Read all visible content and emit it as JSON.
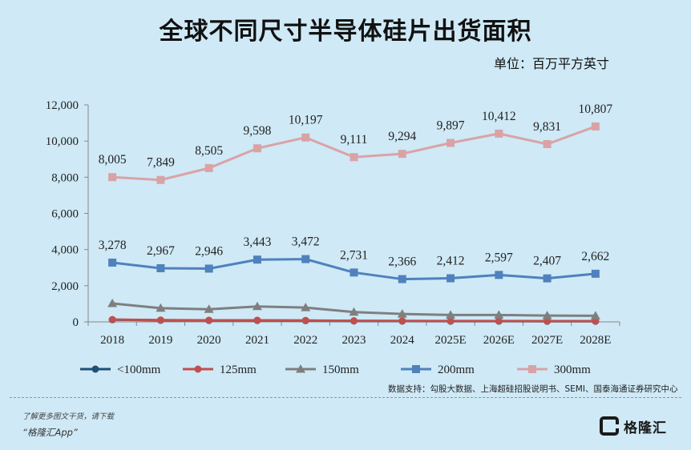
{
  "title": "全球不同尺寸半导体硅片出货面积",
  "unit": "单位：百万平方英寸",
  "source": "数据支持：勾股大数据、上海超硅招股说明书、SEMI、国泰海通证券研究中心",
  "footer": {
    "line": "了解更多图文干货，请下载",
    "app": "“格隆汇App”",
    "brand": "格隆汇"
  },
  "chart_data": {
    "type": "line",
    "categories": [
      "2018",
      "2019",
      "2020",
      "2021",
      "2022",
      "2023",
      "2024",
      "2025E",
      "2026E",
      "2027E",
      "2028E"
    ],
    "ylim": [
      0,
      12000
    ],
    "yticks": [
      "0",
      "2,000",
      "4,000",
      "6,000",
      "8,000",
      "10,000",
      "12,000"
    ],
    "grid": false,
    "legend_position": "bottom",
    "series": [
      {
        "name": "<100mm",
        "color": "#1f4e79",
        "marker": "circle",
        "values": [
          120,
          90,
          80,
          80,
          70,
          50,
          45,
          40,
          40,
          35,
          35
        ],
        "labels": null
      },
      {
        "name": "125mm",
        "color": "#c0504d",
        "marker": "circle",
        "values": [
          130,
          100,
          90,
          90,
          80,
          60,
          55,
          50,
          50,
          45,
          45
        ],
        "labels": null
      },
      {
        "name": "150mm",
        "color": "#7f7f7f",
        "marker": "triangle",
        "values": [
          1020,
          760,
          700,
          850,
          790,
          540,
          440,
          380,
          380,
          350,
          340
        ],
        "labels": null
      },
      {
        "name": "200mm",
        "color": "#4f81bd",
        "marker": "square",
        "values": [
          3278,
          2967,
          2946,
          3443,
          3472,
          2731,
          2366,
          2412,
          2597,
          2407,
          2662
        ],
        "labels": [
          "3,278",
          "2,967",
          "2,946",
          "3,443",
          "3,472",
          "2,731",
          "2,366",
          "2,412",
          "2,597",
          "2,407",
          "2,662"
        ]
      },
      {
        "name": "300mm",
        "color": "#d9a3a6",
        "marker": "square",
        "values": [
          8005,
          7849,
          8505,
          9598,
          10197,
          9111,
          9294,
          9897,
          10412,
          9831,
          10807
        ],
        "labels": [
          "8,005",
          "7,849",
          "8,505",
          "9,598",
          "10,197",
          "9,111",
          "9,294",
          "9,897",
          "10,412",
          "9,831",
          "10,807"
        ]
      }
    ]
  }
}
